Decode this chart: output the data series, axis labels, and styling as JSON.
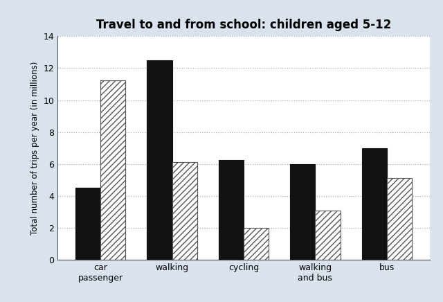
{
  "title": "Travel to and from school: children aged 5-12",
  "ylabel": "Total number of trips per year (in millions)",
  "categories": [
    "car\npassenger",
    "walking",
    "cycling",
    "walking\nand bus",
    "bus"
  ],
  "values_1990": [
    4.5,
    12.5,
    6.25,
    6.0,
    7.0
  ],
  "values_2010": [
    11.25,
    6.1,
    2.0,
    3.1,
    5.1
  ],
  "color_1990": "#111111",
  "color_2010_face": "#ffffff",
  "color_2010_hatch": "#555555",
  "hatch_pattern": "////",
  "ylim": [
    0,
    14
  ],
  "yticks": [
    0,
    2,
    4,
    6,
    8,
    10,
    12,
    14
  ],
  "bar_width": 0.35,
  "outer_background": "#d9e2ed",
  "plot_bg_color": "#ffffff",
  "title_fontsize": 12,
  "label_fontsize": 8.5,
  "tick_fontsize": 9,
  "grid_color": "#aaaaaa",
  "grid_style": ":"
}
